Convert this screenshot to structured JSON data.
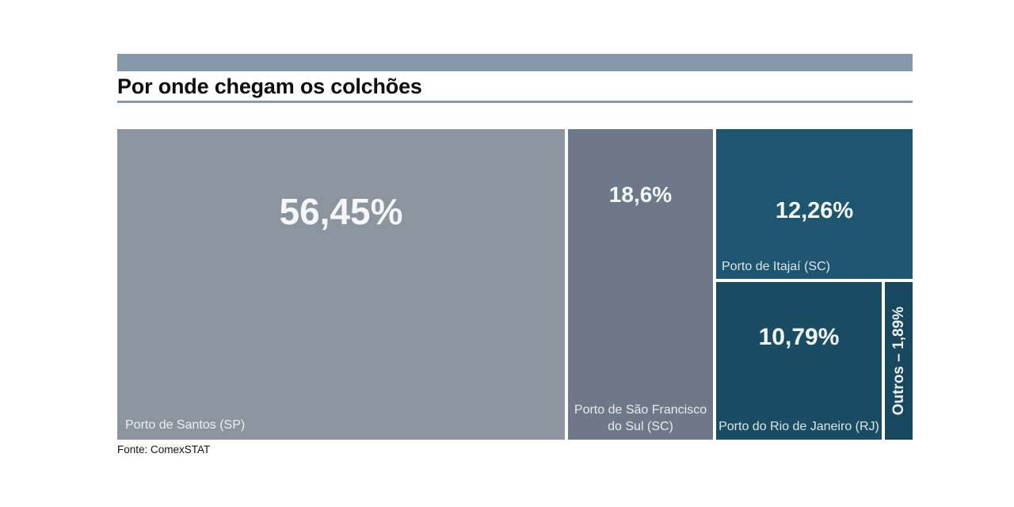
{
  "header": {
    "title": "Por onde chegam os colchões"
  },
  "footer": {
    "source": "Fonte: ComexSTAT"
  },
  "chart_data": {
    "type": "treemap",
    "title": "Por onde chegam os colchões",
    "source": "Fonte: ComexSTAT",
    "unit": "%",
    "value_format": "pt-BR comma decimal",
    "legend": "none",
    "items": [
      {
        "label": "Porto de Santos (SP)",
        "value": 56.45,
        "display_value": "56,45%",
        "color": "#8c949d"
      },
      {
        "label": "Porto de São Francisco do Sul (SC)",
        "value": 18.6,
        "display_value": "18,6%",
        "color": "#6d7988"
      },
      {
        "label": "Porto de Itajaí (SC)",
        "value": 12.26,
        "display_value": "12,26%",
        "color": "#1e5570"
      },
      {
        "label": "Porto do Rio de Janeiro (RJ)",
        "value": 10.79,
        "display_value": "10,79%",
        "color": "#1a4c63"
      },
      {
        "label": "Outros",
        "value": 1.89,
        "display_value": "1,89%",
        "display_label": "Outros – 1,89%",
        "color": "#17485d"
      }
    ],
    "colors": {
      "header_bar": "#8699a9",
      "title_rule": "#8a9aab",
      "background": "#ffffff",
      "value_text": "#f4f6f7",
      "label_text": "#d9dee3"
    }
  }
}
